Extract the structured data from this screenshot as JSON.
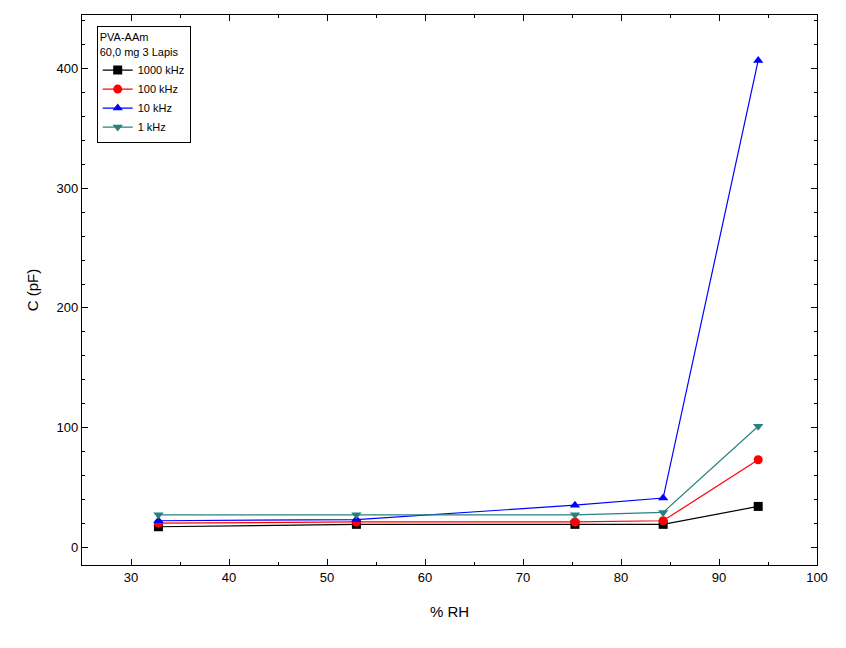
{
  "chart_data": {
    "type": "line",
    "title": "PVA-AAm",
    "subtitle": "60,0 mg 3 Lapis",
    "x_label": "% RH",
    "y_label": "C (pF)",
    "x": [
      32.8,
      53,
      75.3,
      84.3,
      94
    ],
    "series": [
      {
        "name": "1000 kHz",
        "color": "#000000",
        "marker": "square",
        "values": [
          17,
          19,
          19,
          19,
          34
        ]
      },
      {
        "name": "100 kHz",
        "color": "#ff0000",
        "marker": "circle",
        "values": [
          20,
          21,
          21,
          22,
          73
        ]
      },
      {
        "name": "10 kHz",
        "color": "#0000ff",
        "marker": "triangle-up",
        "values": [
          22,
          23,
          35,
          41,
          407
        ]
      },
      {
        "name": "1 kHz",
        "color": "#2a8080",
        "marker": "triangle-down",
        "values": [
          27,
          27,
          27,
          29,
          101
        ]
      }
    ],
    "xlim": [
      25,
      100
    ],
    "xticks": [
      30,
      40,
      50,
      60,
      70,
      80,
      90,
      100
    ],
    "ylim": [
      -15,
      445
    ],
    "yticks": [
      0,
      100,
      200,
      300,
      400
    ],
    "grid": false,
    "legend": "top left"
  }
}
